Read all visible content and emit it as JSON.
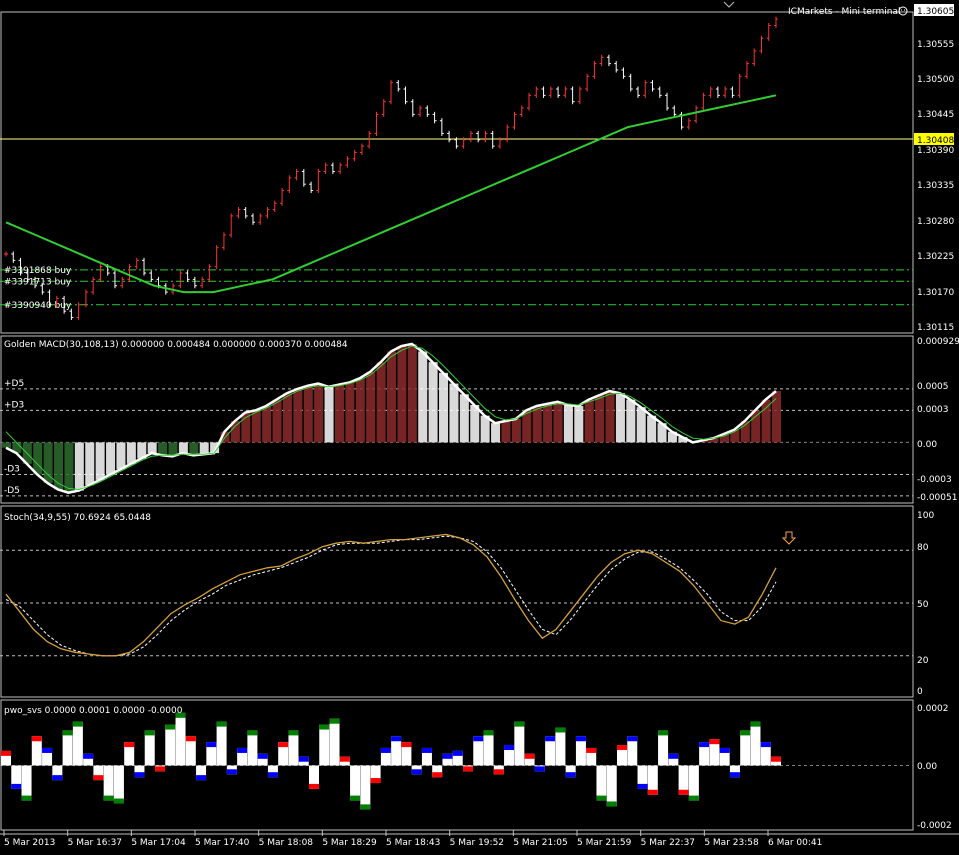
{
  "header": {
    "broker": "ICMarkets - Mini terminal"
  },
  "time_axis": [
    "5 Mar 2013",
    "5 Mar 16:37",
    "5 Mar 17:04",
    "5 Mar 17:40",
    "5 Mar 18:08",
    "5 Mar 18:29",
    "5 Mar 18:43",
    "5 Mar 19:52",
    "5 Mar 21:05",
    "5 Mar 21:59",
    "5 Mar 22:37",
    "5 Mar 23:58",
    "6 Mar 00:41"
  ],
  "colors": {
    "up": "#ff3232",
    "down": "#ffffff",
    "ma": "#32cd32",
    "current_price": "#ffff00",
    "macd_pos": "#8b2a2a",
    "macd_neg": "#2e6b2e",
    "stoch_main": "#d2a03c",
    "pwo_green": "#008000",
    "pwo_blue": "#0000ff",
    "pwo_red": "#ff0000"
  },
  "chart_data": [
    {
      "type": "bar",
      "pane": "price",
      "title": "ICMarkets - Mini terminal",
      "current_price": "1.30605",
      "reference_level": "1.30408",
      "y_ticks": [
        "1.30605",
        "1.30555",
        "1.30500",
        "1.30445",
        "1.30390",
        "1.30335",
        "1.30280",
        "1.30225",
        "1.30170",
        "1.30115"
      ],
      "ylim": [
        1.30115,
        1.30605
      ],
      "orders": [
        {
          "label": "#3391868 buy",
          "price": 1.30205
        },
        {
          "label": "#3391713 buy",
          "price": 1.30187
        },
        {
          "label": "#3390940 buy",
          "price": 1.3015
        }
      ],
      "series": [
        {
          "values": [
            1.3023,
            1.3022,
            1.302,
            1.3019,
            1.3018,
            1.3017,
            1.3015,
            1.3016,
            1.3014,
            1.3013,
            1.3015,
            1.3017,
            1.3019,
            1.3021,
            1.302,
            1.3018,
            1.3019,
            1.3021,
            1.3022,
            1.302,
            1.3019,
            1.3018,
            1.3017,
            1.3018,
            1.302,
            1.3019,
            1.3018,
            1.3019,
            1.3021,
            1.3024,
            1.3026,
            1.3029,
            1.303,
            1.3029,
            1.3028,
            1.3029,
            1.303,
            1.3031,
            1.3033,
            1.3035,
            1.3036,
            1.3034,
            1.3033,
            1.3036,
            1.3037,
            1.3036,
            1.3037,
            1.3038,
            1.3039,
            1.304,
            1.3042,
            1.3045,
            1.3047,
            1.305,
            1.3049,
            1.3047,
            1.3045,
            1.3046,
            1.3045,
            1.3044,
            1.3042,
            1.3041,
            1.304,
            1.3041,
            1.3042,
            1.3041,
            1.3042,
            1.304,
            1.3041,
            1.3043,
            1.3045,
            1.3046,
            1.3048,
            1.3049,
            1.3048,
            1.3049,
            1.3048,
            1.3049,
            1.3047,
            1.3049,
            1.3051,
            1.3053,
            1.3054,
            1.3053,
            1.3052,
            1.3051,
            1.3049,
            1.3048,
            1.305,
            1.3049,
            1.3048,
            1.3046,
            1.3045,
            1.3043,
            1.3044,
            1.3046,
            1.3048,
            1.3049,
            1.3048,
            1.3049,
            1.3048,
            1.3051,
            1.3053,
            1.3055,
            1.3057,
            1.3059,
            1.306
          ]
        },
        {
          "name": "MA",
          "values": [
            1.3028,
            1.3026,
            1.3024,
            1.3022,
            1.302,
            1.3018,
            1.3017,
            1.3017,
            1.3018,
            1.3019,
            1.3021,
            1.3023,
            1.3025,
            1.3027,
            1.3029,
            1.3031,
            1.3033,
            1.3035,
            1.3037,
            1.3039,
            1.3041,
            1.3043,
            1.3044,
            1.3045,
            1.3046,
            1.3047,
            1.3048
          ]
        }
      ]
    },
    {
      "type": "bar",
      "pane": "macd",
      "title": "Golden MACD(30,108,13) 0.000000 0.000484 0.000000 0.000370 0.000484",
      "levels": [
        {
          "label": "+D5",
          "value": 0.0005
        },
        {
          "label": "+D3",
          "value": 0.0003
        },
        {
          "label": "-D3",
          "value": -0.0003
        },
        {
          "label": "-D5",
          "value": -0.0005
        }
      ],
      "y_ticks": [
        "0.000929",
        "0.0005",
        "0.0003",
        "0.00",
        "-0.0003",
        "-0.00051"
      ],
      "ylim": [
        -0.00051,
        0.000929
      ],
      "series": [
        {
          "name": "MACD",
          "values": [
            -5e-05,
            -0.0001,
            -0.0002,
            -0.0003,
            -0.00038,
            -0.00044,
            -0.00047,
            -0.00045,
            -0.0004,
            -0.00035,
            -0.0003,
            -0.00025,
            -0.0002,
            -0.00015,
            -0.0001,
            -0.00012,
            -0.00013,
            -0.0001,
            -0.00012,
            -0.00011,
            -0.0001,
            0.0001,
            0.0002,
            0.00028,
            0.0003,
            0.00034,
            0.0004,
            0.00046,
            0.0005,
            0.00053,
            0.00055,
            0.00052,
            0.00054,
            0.00056,
            0.0006,
            0.00066,
            0.00075,
            0.00085,
            0.0009,
            0.00092,
            0.00085,
            0.00075,
            0.00065,
            0.00055,
            0.00045,
            0.00035,
            0.00025,
            0.00018,
            0.0002,
            0.00022,
            0.0003,
            0.00034,
            0.00036,
            0.00038,
            0.00035,
            0.00034,
            0.0004,
            0.00044,
            0.00048,
            0.00046,
            0.0004,
            0.00033,
            0.00025,
            0.00018,
            0.0001,
            5e-05,
            0.0,
            2e-05,
            4e-05,
            8e-05,
            0.00012,
            0.0002,
            0.0003,
            0.0004,
            0.00048
          ]
        },
        {
          "name": "Signal",
          "values": [
            0.0001,
            0.0,
            -0.0001,
            -0.0002,
            -0.0003,
            -0.00038,
            -0.00043,
            -0.00044,
            -0.00041,
            -0.00037,
            -0.00032,
            -0.00027,
            -0.00022,
            -0.00017,
            -0.00013,
            -0.00012,
            -0.00012,
            -0.00011,
            -0.00011,
            -0.00011,
            -0.0001,
            4e-05,
            0.00015,
            0.00023,
            0.00028,
            0.00032,
            0.00037,
            0.00043,
            0.00048,
            0.00051,
            0.00053,
            0.00052,
            0.00053,
            0.00055,
            0.00058,
            0.00063,
            0.00071,
            0.0008,
            0.00086,
            0.0009,
            0.00088,
            0.00081,
            0.00072,
            0.00062,
            0.00052,
            0.00042,
            0.00032,
            0.00024,
            0.00021,
            0.00022,
            0.00027,
            0.00031,
            0.00034,
            0.00036,
            0.00036,
            0.00035,
            0.00038,
            0.00041,
            0.00045,
            0.00046,
            0.00043,
            0.00037,
            0.0003,
            0.00023,
            0.00015,
            9e-05,
            4e-05,
            3e-05,
            4e-05,
            6e-05,
            0.0001,
            0.00016,
            0.00024,
            0.00032,
            0.00041
          ]
        }
      ]
    },
    {
      "type": "line",
      "pane": "stoch",
      "title": "Stoch(34,9,55) 70.6924 65.0448",
      "y_ticks": [
        "100",
        "80",
        "50",
        "20",
        "0"
      ],
      "ylim": [
        0,
        100
      ],
      "series": [
        {
          "name": "Main",
          "values": [
            55,
            45,
            35,
            28,
            24,
            22,
            21,
            20,
            20,
            22,
            28,
            36,
            44,
            49,
            53,
            58,
            62,
            66,
            68,
            70,
            71,
            75,
            78,
            82,
            84,
            85,
            84,
            85,
            86,
            86,
            87,
            88,
            89,
            87,
            83,
            76,
            65,
            52,
            40,
            30,
            35,
            45,
            55,
            65,
            73,
            78,
            80,
            78,
            73,
            68,
            60,
            50,
            40,
            38,
            42,
            55,
            70
          ]
        },
        {
          "name": "Signal",
          "values": [
            52,
            48,
            40,
            32,
            26,
            23,
            21,
            20,
            20,
            21,
            25,
            32,
            40,
            46,
            51,
            55,
            60,
            63,
            66,
            68,
            70,
            73,
            76,
            80,
            83,
            84,
            84,
            84,
            85,
            86,
            86,
            87,
            88,
            87,
            85,
            79,
            70,
            58,
            46,
            35,
            32,
            40,
            50,
            60,
            69,
            75,
            79,
            79,
            75,
            70,
            63,
            55,
            45,
            40,
            40,
            48,
            62
          ]
        }
      ]
    },
    {
      "type": "bar",
      "pane": "pwo",
      "title": "pwo_svs 0.0000 0.0001 0.0000 -0.0000",
      "y_ticks": [
        "0.0002",
        "0.00",
        "-0.0002"
      ],
      "ylim": [
        -0.0002,
        0.0002
      ],
      "series": [
        {
          "values": [
            5e-05,
            -8e-05,
            -0.00012,
            0.0001,
            6e-05,
            -5e-05,
            0.00012,
            0.00015,
            4e-05,
            -5e-05,
            -0.00012,
            -0.00013,
            8e-05,
            -4e-05,
            0.00012,
            -2e-05,
            0.00014,
            0.00018,
            0.0001,
            -5e-05,
            8e-05,
            0.00015,
            -3e-05,
            6e-05,
            0.00012,
            4e-05,
            -4e-05,
            8e-05,
            0.00012,
            3e-05,
            -8e-05,
            0.00014,
            0.00016,
            3e-05,
            -0.00012,
            -0.00015,
            -6e-05,
            6e-05,
            0.0001,
            8e-05,
            -3e-05,
            6e-05,
            -4e-05,
            4e-05,
            5e-05,
            -2e-05,
            0.0001,
            0.00012,
            -3e-05,
            7e-05,
            0.00015,
            4e-05,
            -2e-05,
            0.0001,
            0.00013,
            -4e-05,
            0.0001,
            6e-05,
            -0.00012,
            -0.00014,
            7e-05,
            0.0001,
            -8e-05,
            -0.0001,
            0.00012,
            4e-05,
            -0.0001,
            -0.00012,
            8e-05,
            9e-05,
            6e-05,
            -4e-05,
            0.00012,
            0.00015,
            8e-05,
            3e-05
          ]
        }
      ]
    }
  ]
}
